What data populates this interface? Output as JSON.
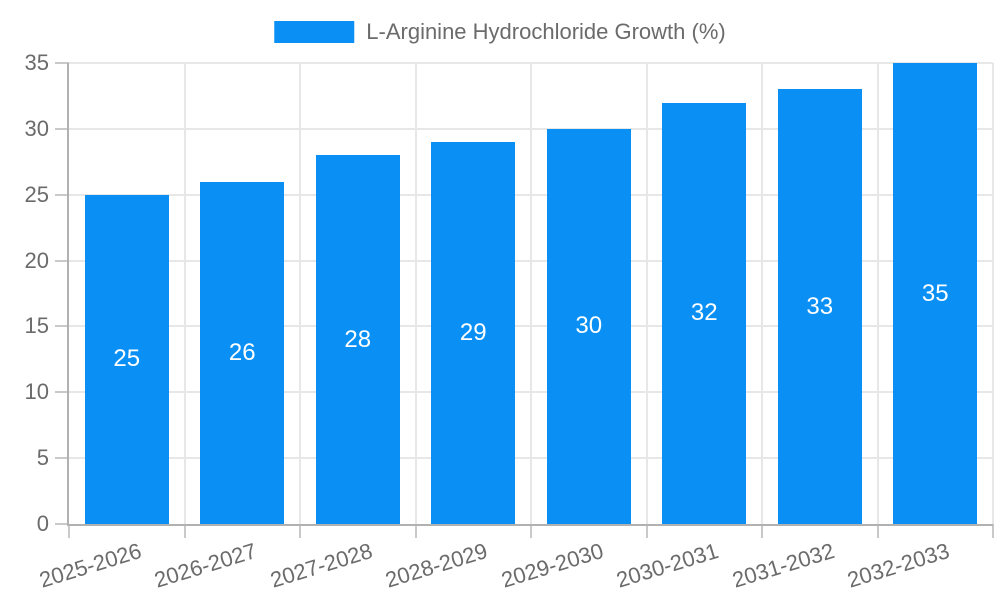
{
  "chart_data": {
    "type": "bar",
    "title": "",
    "legend": "L-Arginine Hydrochloride Growth (%)",
    "legend_position": "top-center",
    "categories": [
      "2025-2026",
      "2026-2027",
      "2027-2028",
      "2028-2029",
      "2029-2030",
      "2030-2031",
      "2031-2032",
      "2032-2033"
    ],
    "values": [
      25,
      26,
      28,
      29,
      30,
      32,
      33,
      35
    ],
    "value_labels_inside_bars": [
      25,
      26,
      28,
      29,
      30,
      32,
      33,
      35
    ],
    "xlabel": "",
    "ylabel": "",
    "ylim": [
      0,
      35
    ],
    "yticks": [
      0,
      5,
      10,
      15,
      20,
      25,
      30,
      35
    ],
    "grid": true,
    "x_tick_label_rotation_deg": -17,
    "colors": {
      "bar": "#0a90f5",
      "bar_label": "#ffffff",
      "axis_text": "#6b6b6b",
      "gridline": "#e7e7e7",
      "axis_line": "#b1b1b1",
      "tick_mark": "#c9c9c9",
      "background": "#ffffff"
    }
  }
}
